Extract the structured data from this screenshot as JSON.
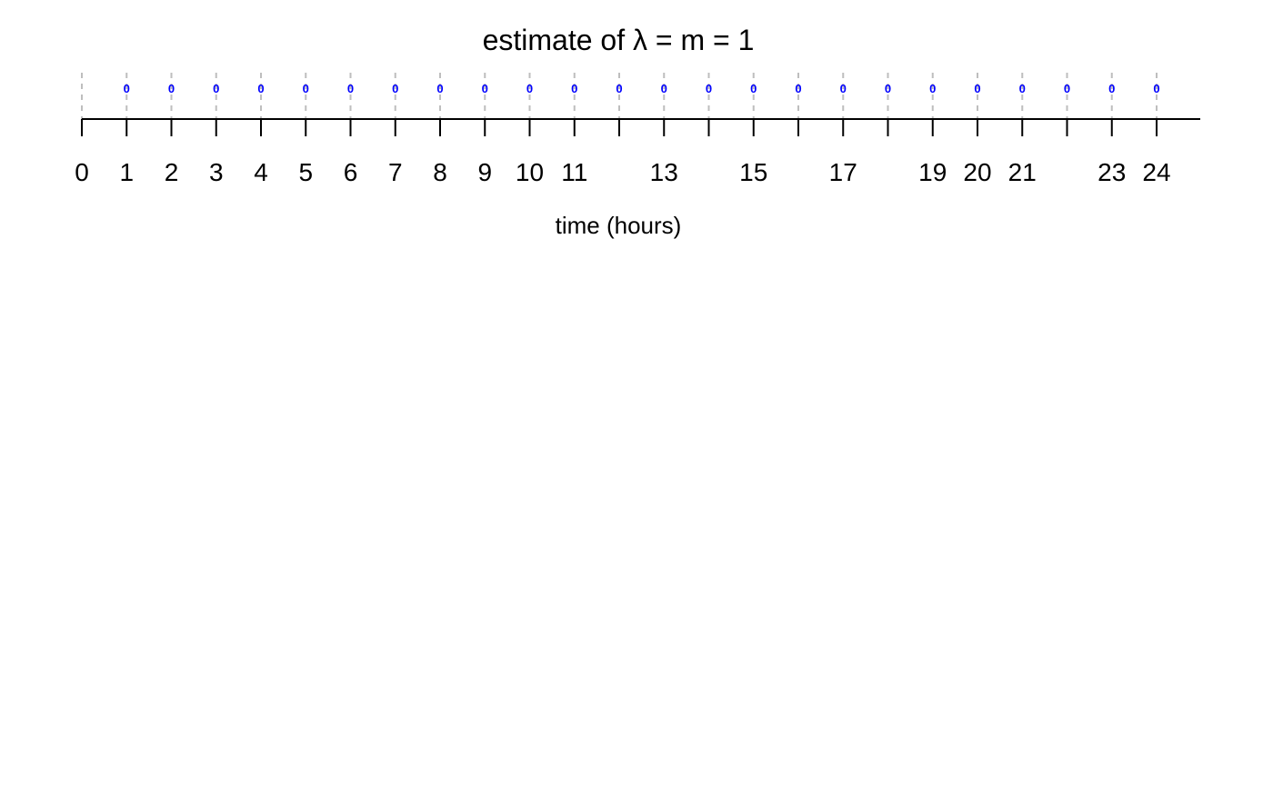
{
  "chart_data": {
    "type": "scatter",
    "title": "estimate of λ = m = 1",
    "xlabel": "time (hours)",
    "ylabel": "",
    "xlim": [
      0,
      24
    ],
    "ticks": [
      0,
      1,
      2,
      3,
      4,
      5,
      6,
      7,
      8,
      9,
      10,
      11,
      12,
      13,
      14,
      15,
      16,
      17,
      18,
      19,
      20,
      21,
      22,
      23,
      24
    ],
    "tick_labels": [
      "0",
      "1",
      "2",
      "3",
      "4",
      "5",
      "6",
      "7",
      "8",
      "9",
      "10",
      "11",
      "",
      "13",
      "",
      "15",
      "",
      "17",
      "",
      "19",
      "20",
      "21",
      "",
      "23",
      "24"
    ],
    "events": [
      1,
      2,
      3,
      4,
      5,
      6,
      7,
      8,
      9,
      10,
      11,
      12,
      13,
      14,
      15,
      16,
      17,
      18,
      19,
      20,
      21,
      22,
      23,
      24
    ],
    "event_label": "0",
    "grid": true,
    "colors": {
      "axis": "#000000",
      "gridline": "#bebebe",
      "event": "#0000ff"
    }
  }
}
